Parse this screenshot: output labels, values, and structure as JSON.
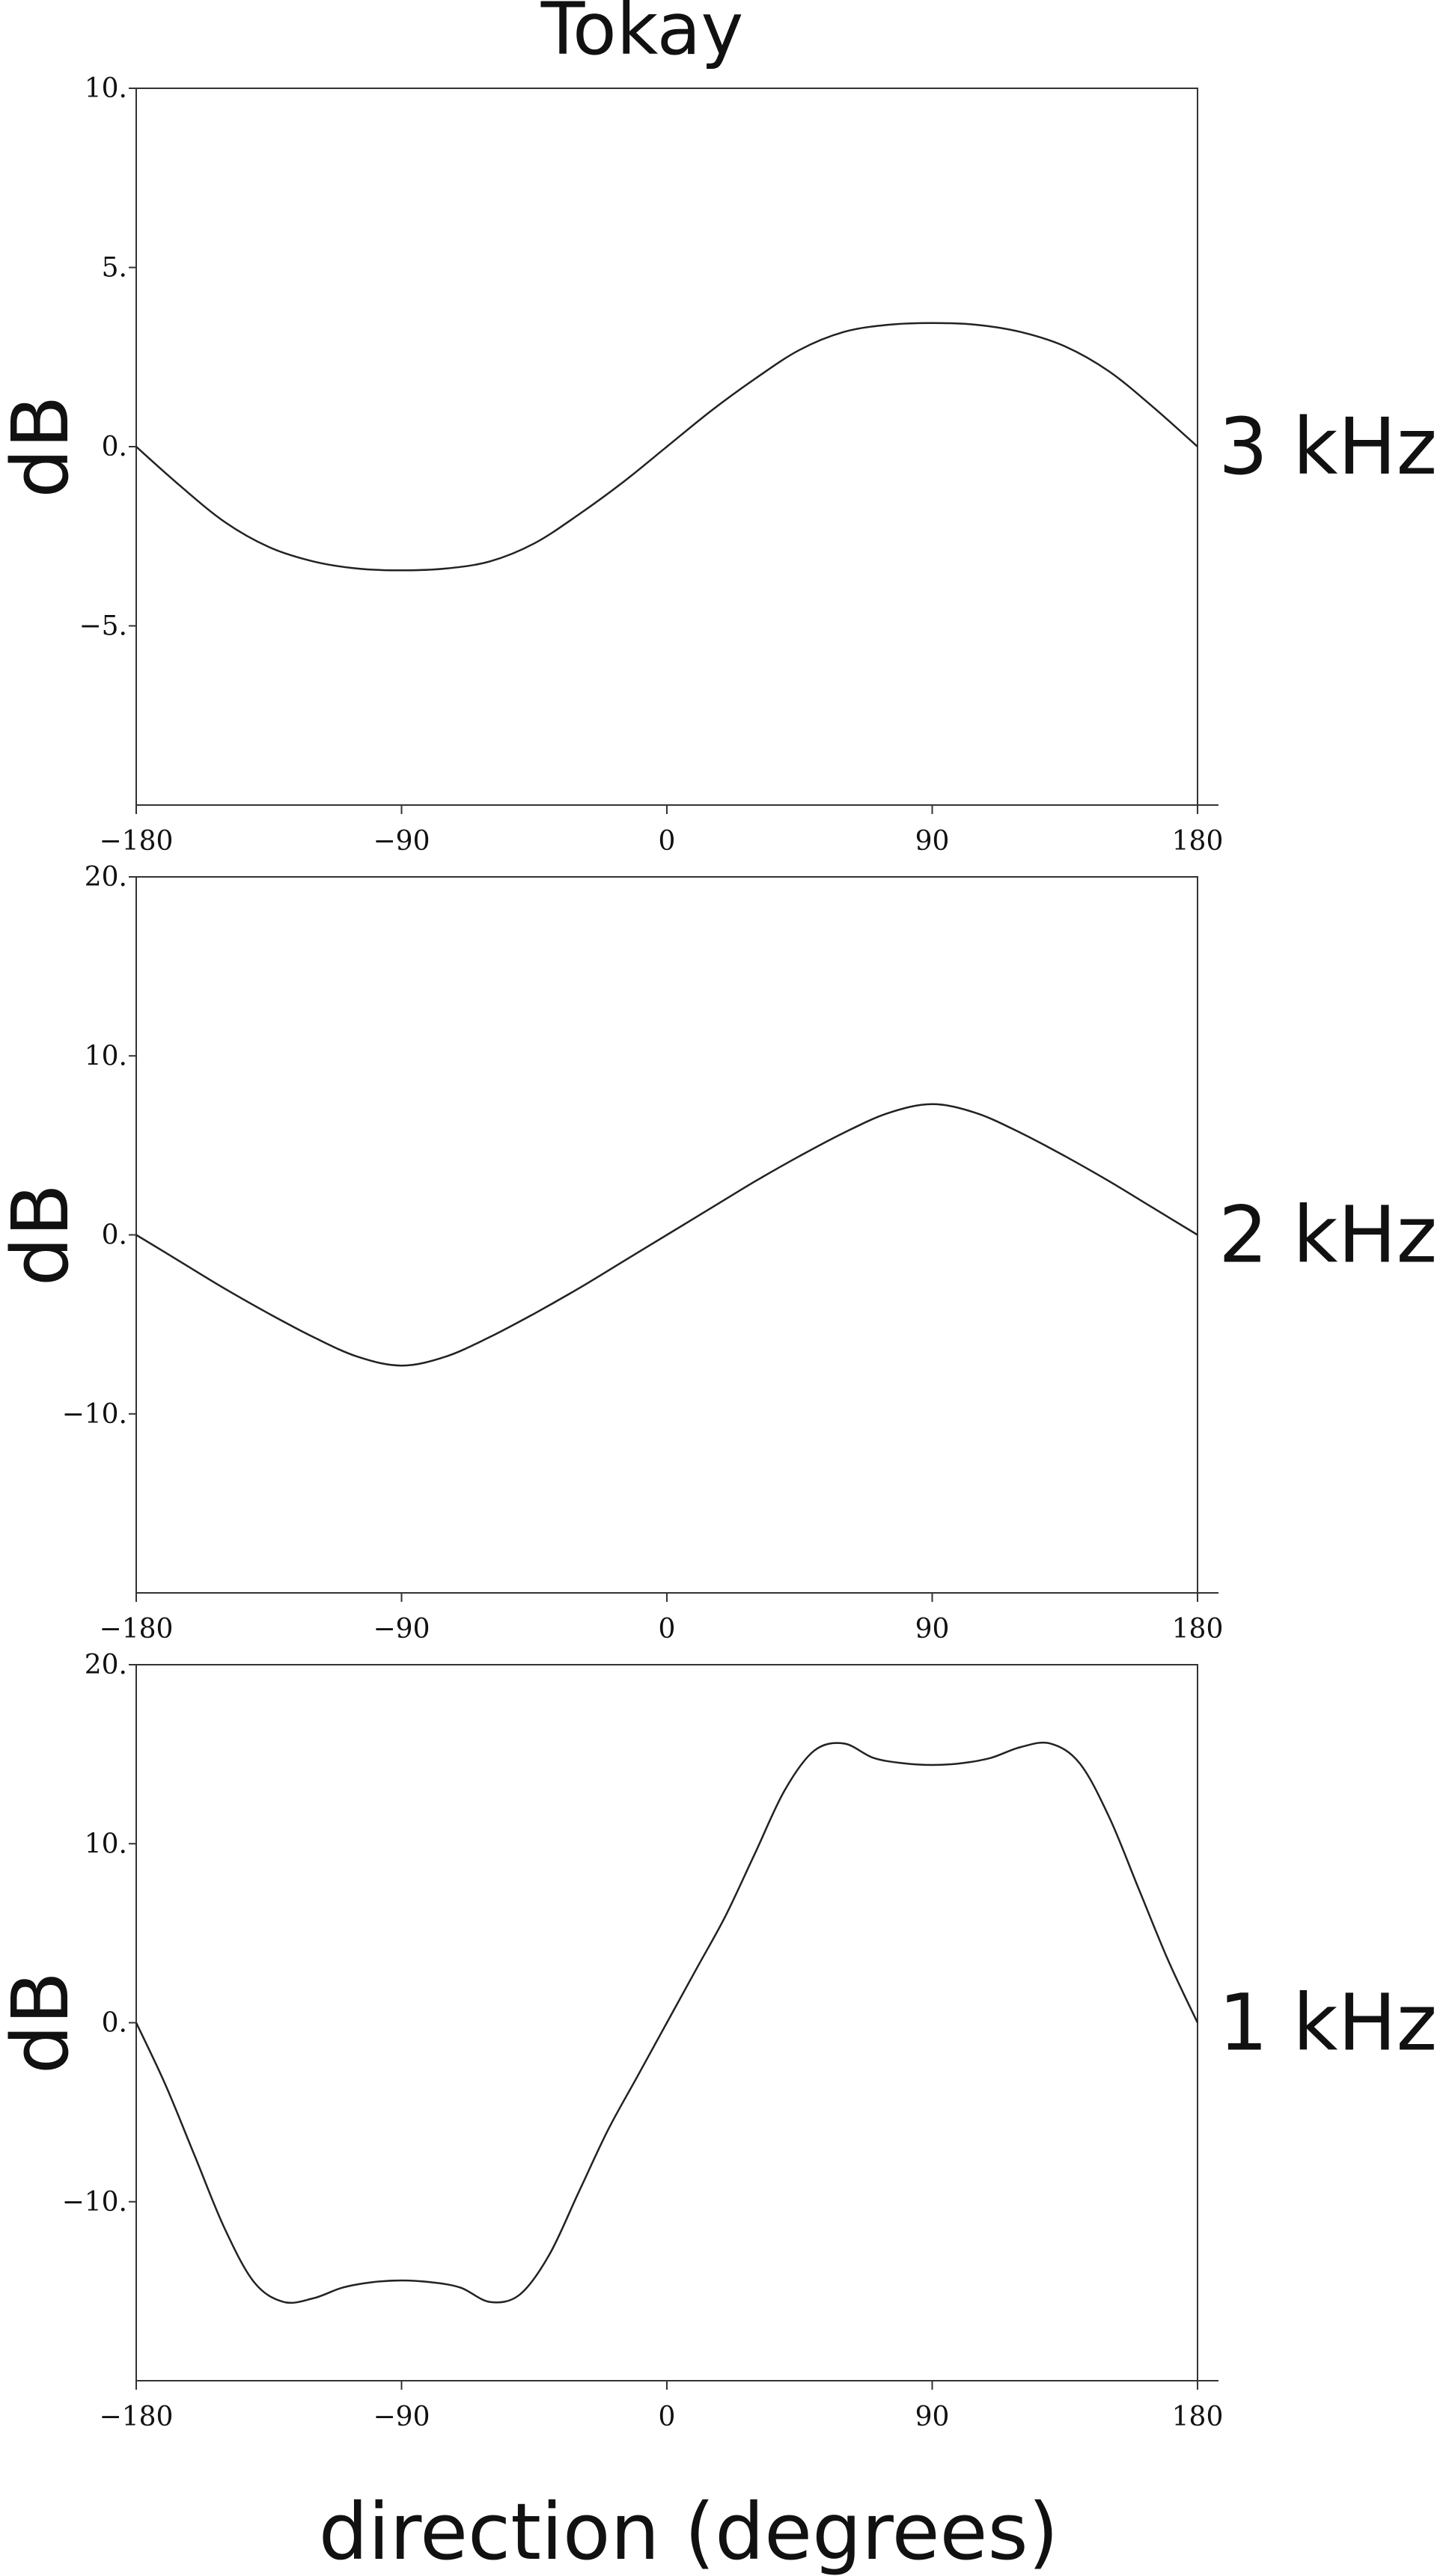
{
  "figure": {
    "title": "Tokay",
    "xlabel": "direction (degrees)"
  },
  "chart_data": [
    {
      "type": "line",
      "panel_label": "3 kHz",
      "ylabel": "dB",
      "xlim": [
        -180,
        180
      ],
      "ylim": [
        -10,
        10
      ],
      "xticks": [
        -180,
        -90,
        0,
        90,
        180
      ],
      "xtick_labels": [
        "−180",
        "−90",
        "0",
        "90",
        "180"
      ],
      "yticks": [
        -5,
        0,
        5,
        10
      ],
      "ytick_labels": [
        "−5.",
        "0.",
        "5.",
        "10."
      ],
      "grid": false,
      "series": [
        {
          "x": [
            -180,
            -165,
            -150,
            -135,
            -120,
            -105,
            -90,
            -75,
            -60,
            -45,
            -30,
            -15,
            0,
            15,
            30,
            45,
            60,
            75,
            90,
            105,
            120,
            135,
            150,
            165,
            180
          ],
          "y": [
            0,
            -1.1,
            -2.1,
            -2.8,
            -3.2,
            -3.4,
            -3.45,
            -3.4,
            -3.2,
            -2.7,
            -1.9,
            -1.0,
            0,
            1.0,
            1.9,
            2.7,
            3.2,
            3.4,
            3.45,
            3.4,
            3.2,
            2.8,
            2.1,
            1.1,
            0
          ]
        }
      ]
    },
    {
      "type": "line",
      "panel_label": "2 kHz",
      "ylabel": "dB",
      "xlim": [
        -180,
        180
      ],
      "ylim": [
        -20,
        20
      ],
      "xticks": [
        -180,
        -90,
        0,
        90,
        180
      ],
      "xtick_labels": [
        "−180",
        "−90",
        "0",
        "90",
        "180"
      ],
      "yticks": [
        -10,
        0,
        10,
        20
      ],
      "ytick_labels": [
        "−10.",
        "0.",
        "10.",
        "20."
      ],
      "grid": false,
      "series": [
        {
          "x": [
            -180,
            -165,
            -150,
            -135,
            -120,
            -105,
            -90,
            -75,
            -60,
            -45,
            -30,
            -15,
            0,
            15,
            30,
            45,
            60,
            75,
            90,
            105,
            120,
            135,
            150,
            165,
            180
          ],
          "y": [
            0,
            -1.5,
            -3.0,
            -4.4,
            -5.7,
            -6.8,
            -7.3,
            -6.8,
            -5.7,
            -4.4,
            -3.0,
            -1.5,
            0,
            1.5,
            3.0,
            4.4,
            5.7,
            6.8,
            7.3,
            6.8,
            5.7,
            4.4,
            3.0,
            1.5,
            0
          ]
        }
      ]
    },
    {
      "type": "line",
      "panel_label": "1 kHz",
      "ylabel": "dB",
      "xlim": [
        -180,
        180
      ],
      "ylim": [
        -20,
        20
      ],
      "xticks": [
        -180,
        -90,
        0,
        90,
        180
      ],
      "xtick_labels": [
        "−180",
        "−90",
        "0",
        "90",
        "180"
      ],
      "yticks": [
        -10,
        0,
        10,
        20
      ],
      "ytick_labels": [
        "−10.",
        "0.",
        "10.",
        "20."
      ],
      "grid": false,
      "series": [
        {
          "x": [
            -180,
            -170,
            -160,
            -150,
            -140,
            -130,
            -120,
            -110,
            -100,
            -90,
            -80,
            -70,
            -60,
            -50,
            -40,
            -30,
            -20,
            -10,
            0,
            10,
            20,
            30,
            40,
            50,
            60,
            70,
            80,
            90,
            100,
            110,
            120,
            130,
            140,
            150,
            160,
            170,
            180
          ],
          "y": [
            0,
            -3.5,
            -7.5,
            -11.5,
            -14.5,
            -15.6,
            -15.4,
            -14.8,
            -14.5,
            -14.4,
            -14.5,
            -14.8,
            -15.6,
            -15.2,
            -13.0,
            -9.5,
            -6.0,
            -3.0,
            0,
            3.0,
            6.0,
            9.5,
            13.0,
            15.2,
            15.6,
            14.8,
            14.5,
            14.4,
            14.5,
            14.8,
            15.4,
            15.6,
            14.5,
            11.5,
            7.5,
            3.5,
            0
          ]
        }
      ]
    }
  ]
}
